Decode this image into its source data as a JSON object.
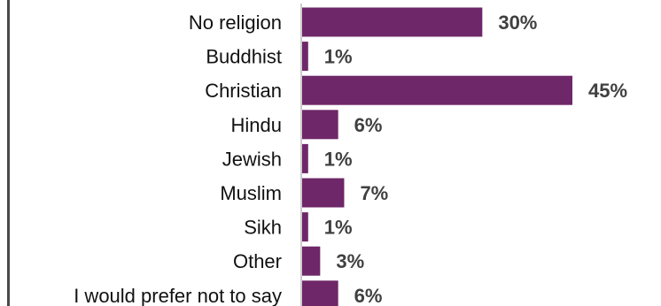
{
  "chart_data": {
    "type": "bar",
    "orientation": "horizontal",
    "categories": [
      "No religion",
      "Buddhist",
      "Christian",
      "Hindu",
      "Jewish",
      "Muslim",
      "Sikh",
      "Other",
      "I would prefer not to say"
    ],
    "values": [
      30,
      1,
      45,
      6,
      1,
      7,
      1,
      3,
      6
    ],
    "value_labels": [
      "30%",
      "1%",
      "45%",
      "6%",
      "1%",
      "7%",
      "1%",
      "3%",
      "6%"
    ],
    "unit": "%",
    "xlim": [
      0,
      45
    ],
    "bar_color": "#6e2768",
    "label_color": "#404040",
    "grid": false,
    "legend": "none"
  }
}
